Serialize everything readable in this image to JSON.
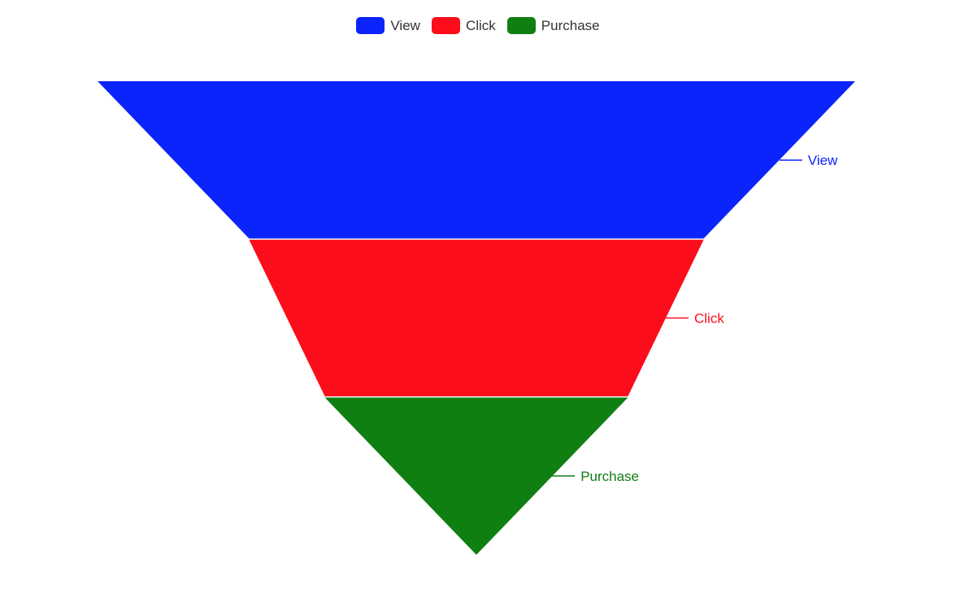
{
  "chart_data": {
    "type": "funnel",
    "categories": [
      "View",
      "Click",
      "Purchase"
    ],
    "values": [
      100,
      60,
      40
    ],
    "colors": [
      "#0b24fb",
      "#fc0d1b",
      "#0f7f12"
    ],
    "labels": [
      "View",
      "Click",
      "Purchase"
    ],
    "legend": {
      "position": "top-center",
      "items": [
        "View",
        "Click",
        "Purchase"
      ]
    },
    "sort": "descending",
    "min": 0,
    "max": 100
  }
}
